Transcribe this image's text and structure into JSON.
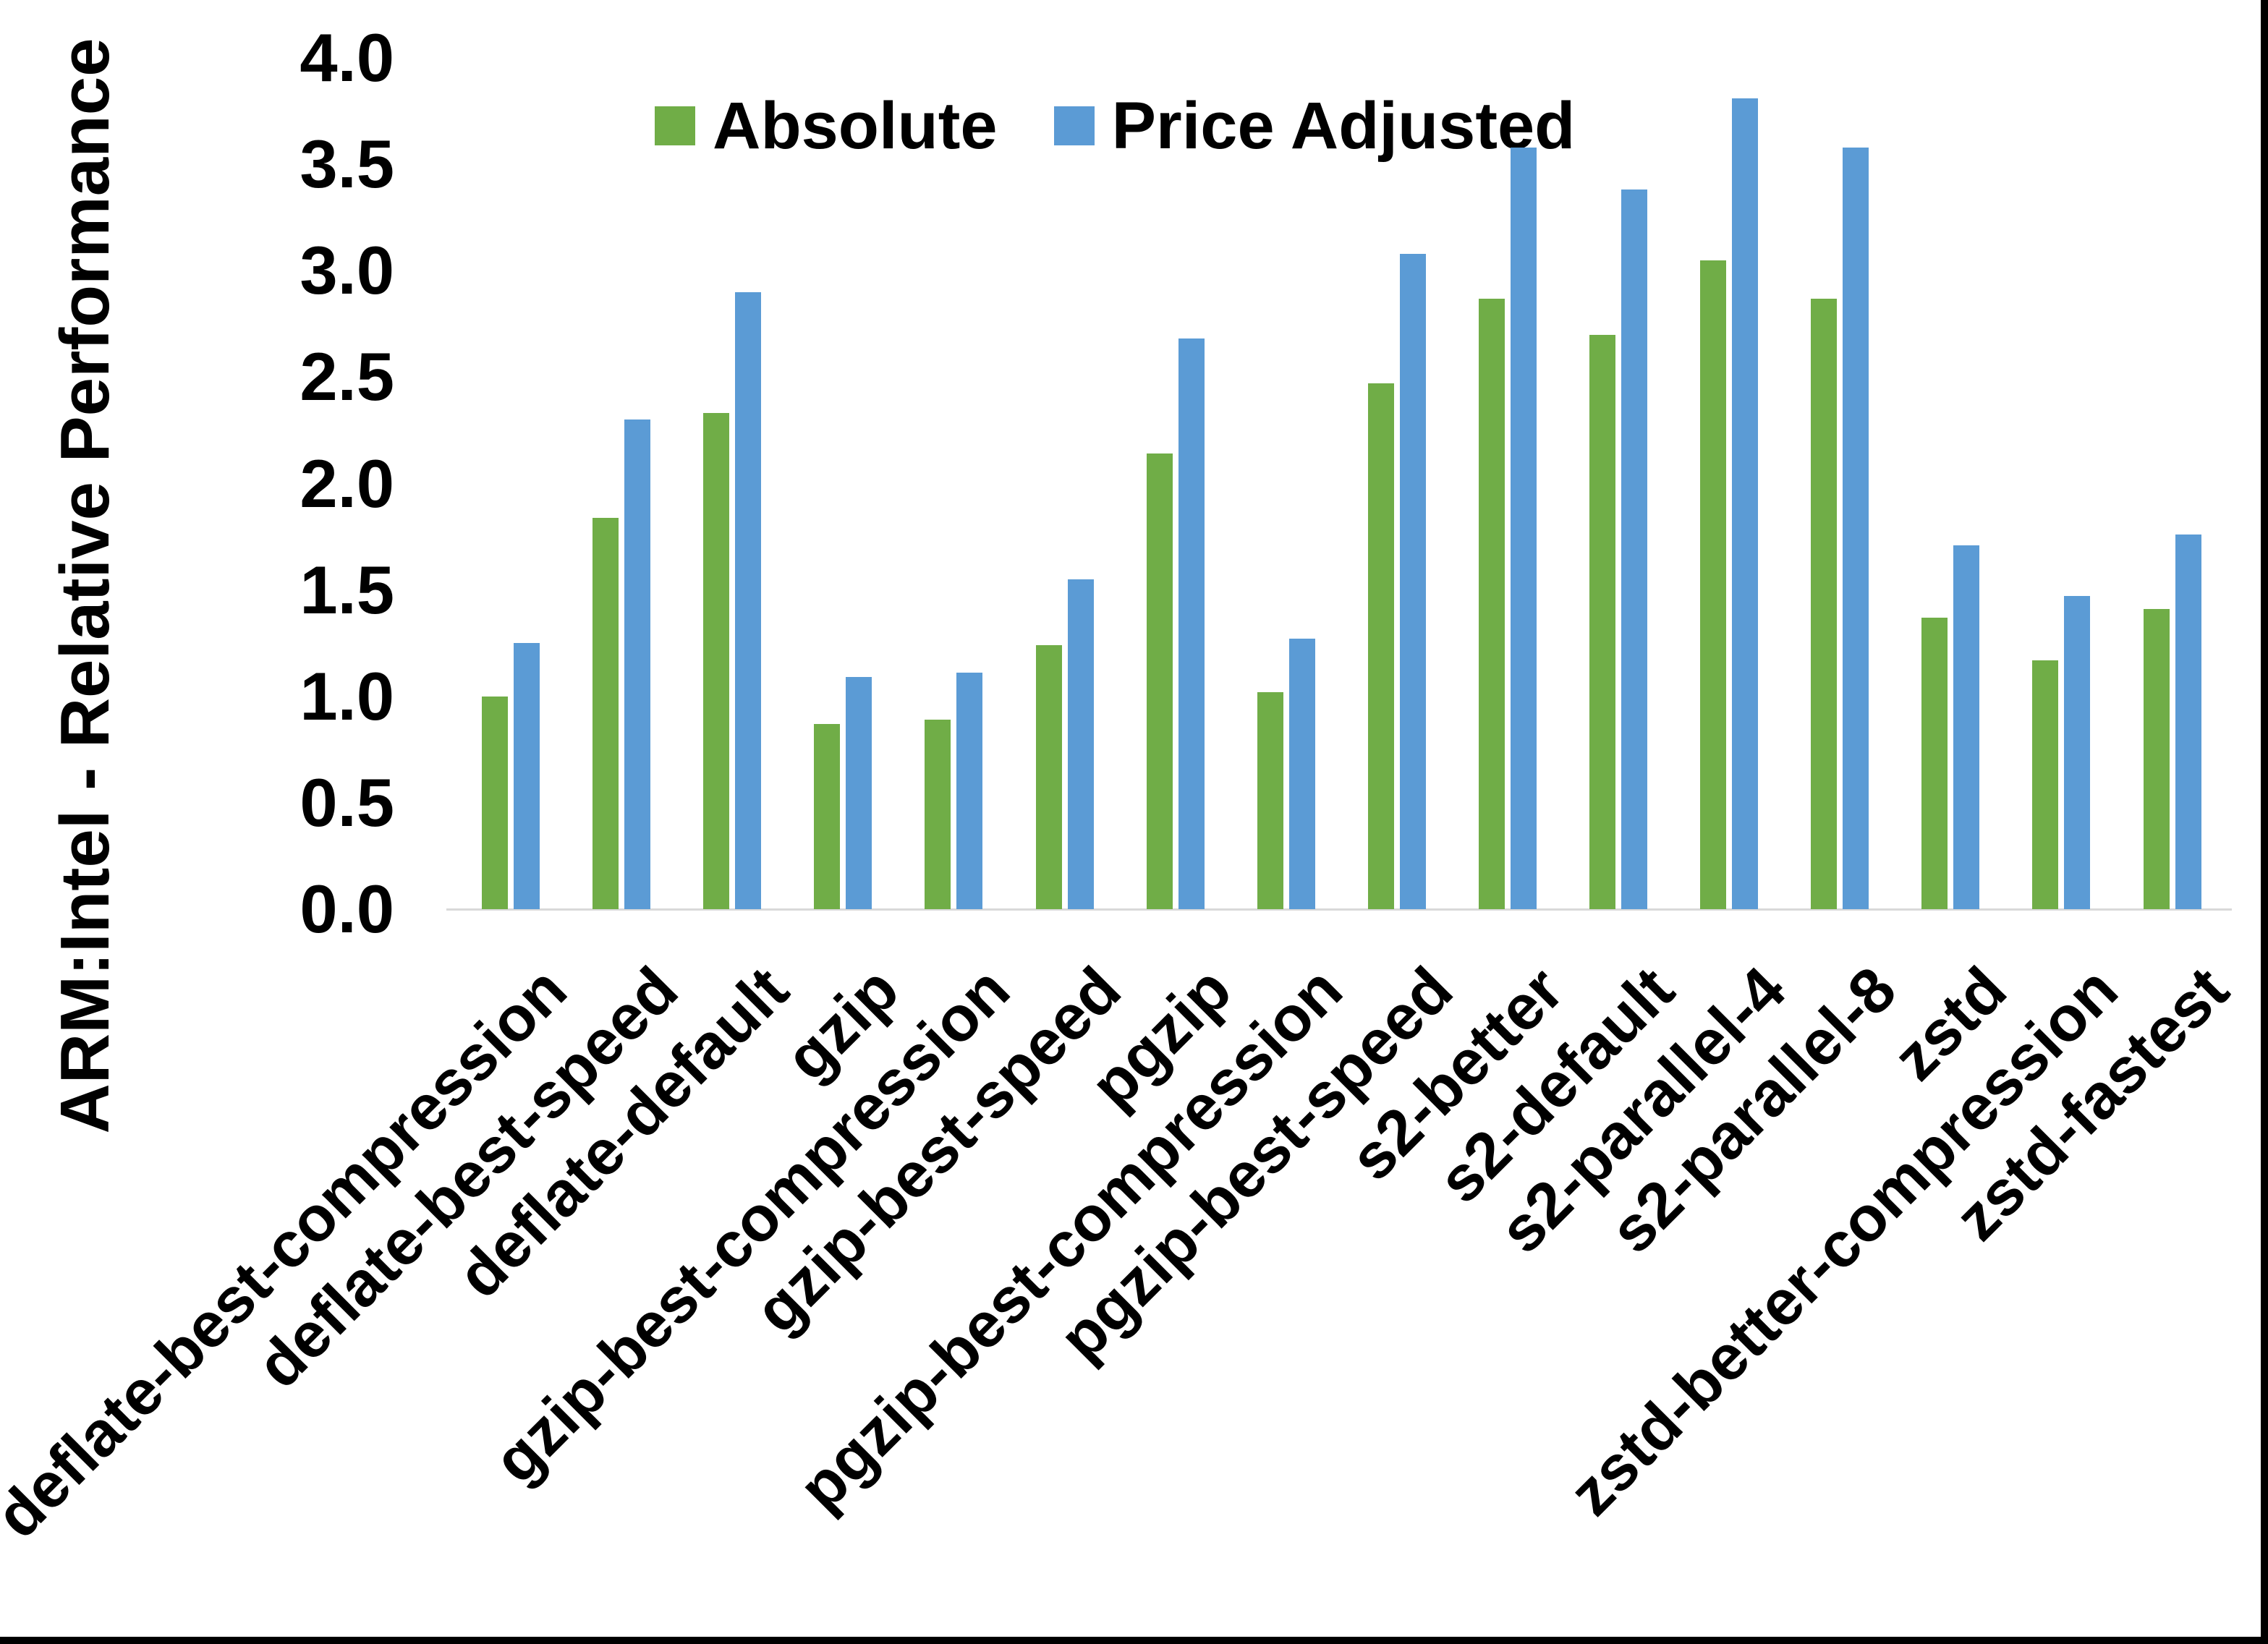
{
  "chart_data": {
    "type": "bar",
    "title": "",
    "xlabel": "",
    "ylabel": "ARM:Intel - Relative Performance",
    "categories": [
      "deflate-best-compression",
      "deflate-best-speed",
      "deflate-default",
      "gzip",
      "gzip-best-compression",
      "gzip-best-speed",
      "pgzip",
      "pgzip-best-compression",
      "pgzip-best-speed",
      "s2-better",
      "s2-default",
      "s2-parallel-4",
      "s2-parallel-8",
      "zstd",
      "zstd-better-compression",
      "zstd-fastest"
    ],
    "series": [
      {
        "name": "Absolute",
        "color": "#70AD47",
        "values": [
          1.0,
          1.84,
          2.33,
          0.87,
          0.89,
          1.24,
          2.14,
          1.02,
          2.47,
          2.87,
          2.7,
          3.05,
          2.87,
          1.37,
          1.17,
          1.41
        ]
      },
      {
        "name": "Price Adjusted",
        "color": "#5B9BD5",
        "values": [
          1.25,
          2.3,
          2.9,
          1.09,
          1.11,
          1.55,
          2.68,
          1.27,
          3.08,
          3.58,
          3.38,
          3.81,
          3.58,
          1.71,
          1.47,
          1.76
        ]
      }
    ],
    "ylim": [
      0.0,
      4.0
    ],
    "yticks": [
      "0.0",
      "0.5",
      "1.0",
      "1.5",
      "2.0",
      "2.5",
      "3.0",
      "3.5",
      "4.0"
    ],
    "grid": false,
    "legend_position": "top-center",
    "axis_line_color": "#d9d9d9",
    "background": "#ffffff",
    "border_color": "#000000"
  }
}
